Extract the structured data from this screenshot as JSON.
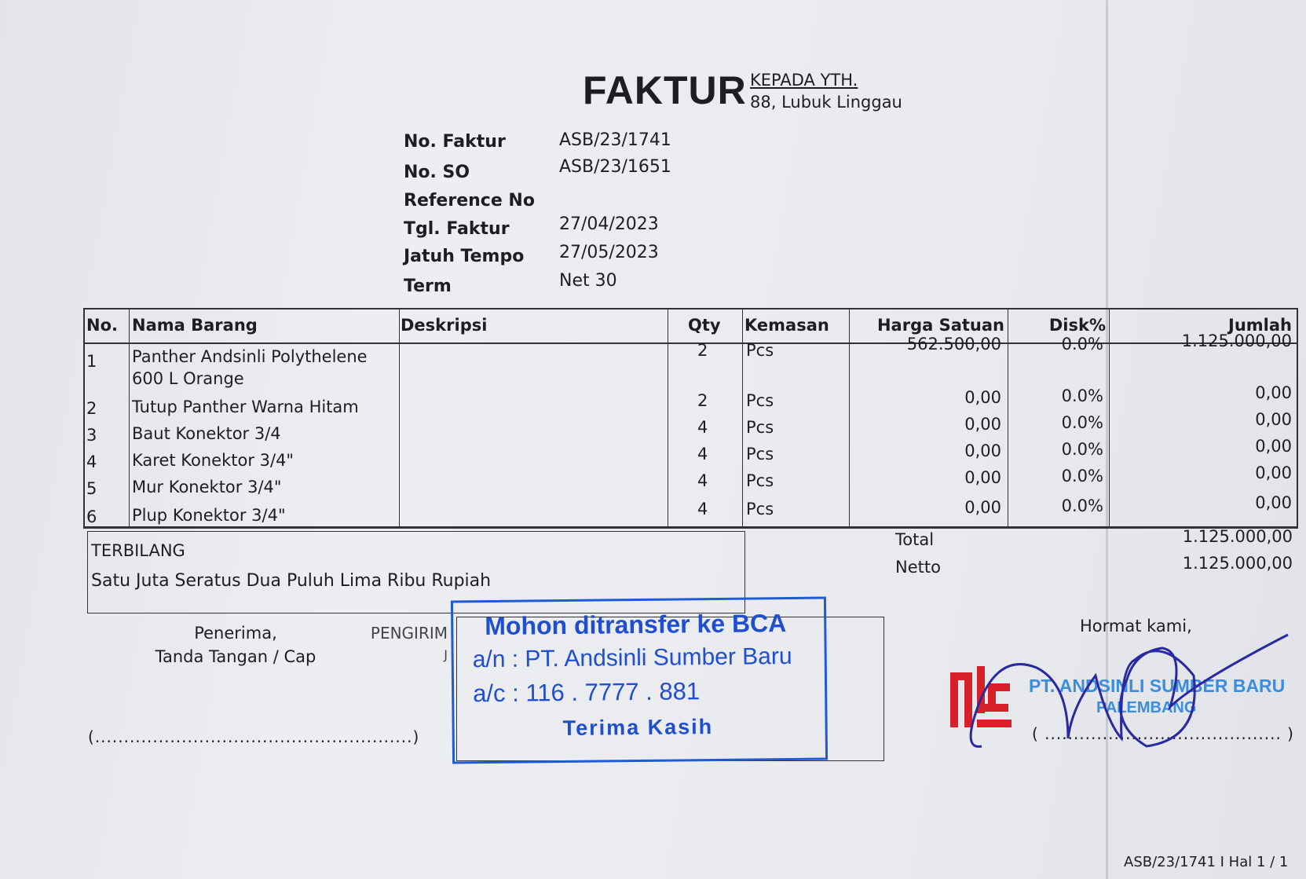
{
  "header": {
    "title": "FAKTUR",
    "recipient_label": "KEPADA YTH.",
    "recipient_address": "88, Lubuk Linggau"
  },
  "info": [
    {
      "label": "No. Faktur",
      "value": "ASB/23/1741"
    },
    {
      "label": "No. SO",
      "value": "ASB/23/1651"
    },
    {
      "label": "Reference No",
      "value": ""
    },
    {
      "label": "Tgl. Faktur",
      "value": "27/04/2023"
    },
    {
      "label": "Jatuh Tempo",
      "value": "27/05/2023"
    },
    {
      "label": "Term",
      "value": "Net 30"
    }
  ],
  "table": {
    "columns": [
      "No.",
      "Nama Barang",
      "Deskripsi",
      "Qty",
      "Kemasan",
      "Harga Satuan",
      "Disk%",
      "Jumlah"
    ],
    "rows": [
      {
        "no": "1",
        "name": "Panther Andsinli Polythelene",
        "name2": "600 L Orange",
        "desc": "",
        "qty": "2",
        "unit": "Pcs",
        "price": "562.500,00",
        "disc": "0.0%",
        "total": "1.125.000,00"
      },
      {
        "no": "2",
        "name": "Tutup Panther Warna Hitam",
        "desc": "",
        "qty": "2",
        "unit": "Pcs",
        "price": "0,00",
        "disc": "0.0%",
        "total": "0,00"
      },
      {
        "no": "3",
        "name": "Baut Konektor 3/4",
        "desc": "",
        "qty": "4",
        "unit": "Pcs",
        "price": "0,00",
        "disc": "0.0%",
        "total": "0,00"
      },
      {
        "no": "4",
        "name": "Karet Konektor 3/4\"",
        "desc": "",
        "qty": "4",
        "unit": "Pcs",
        "price": "0,00",
        "disc": "0.0%",
        "total": "0,00"
      },
      {
        "no": "5",
        "name": "Mur Konektor 3/4\"",
        "desc": "",
        "qty": "4",
        "unit": "Pcs",
        "price": "0,00",
        "disc": "0.0%",
        "total": "0,00"
      },
      {
        "no": "6",
        "name": "Plup Konektor 3/4\"",
        "desc": "",
        "qty": "4",
        "unit": "Pcs",
        "price": "0,00",
        "disc": "0.0%",
        "total": "0,00"
      }
    ]
  },
  "terbilang": {
    "label": "TERBILANG",
    "text": "Satu Juta Seratus Dua Puluh Lima Ribu Rupiah"
  },
  "summary": {
    "total_label": "Total",
    "total": "1.125.000,00",
    "netto_label": "Netto",
    "netto": "1.125.000,00"
  },
  "receiver": {
    "line1": "Penerima,",
    "line2": "Tanda Tangan / Cap",
    "sign_line": "(.......................................................)"
  },
  "sender": {
    "label": "PENGIRIM",
    "initial": "J"
  },
  "transfer_stamp": {
    "line1": "Mohon ditransfer ke BCA",
    "line2": "a/n : PT. Andsinli Sumber Baru",
    "line3": "a/c : 116 . 7777 . 881",
    "line4": "Terima Kasih",
    "color": "#1f4fd0"
  },
  "company": {
    "closing": "Hormat kami,",
    "logo": "ASB",
    "stamp_name": "PT. ANDSINLI SUMBER BARU",
    "stamp_city": "PALEMBANG",
    "sign_line": "( ......................................... )",
    "logo_color": "#d8202a"
  },
  "footer": {
    "page_info": "ASB/23/1741 I Hal 1 / 1"
  }
}
